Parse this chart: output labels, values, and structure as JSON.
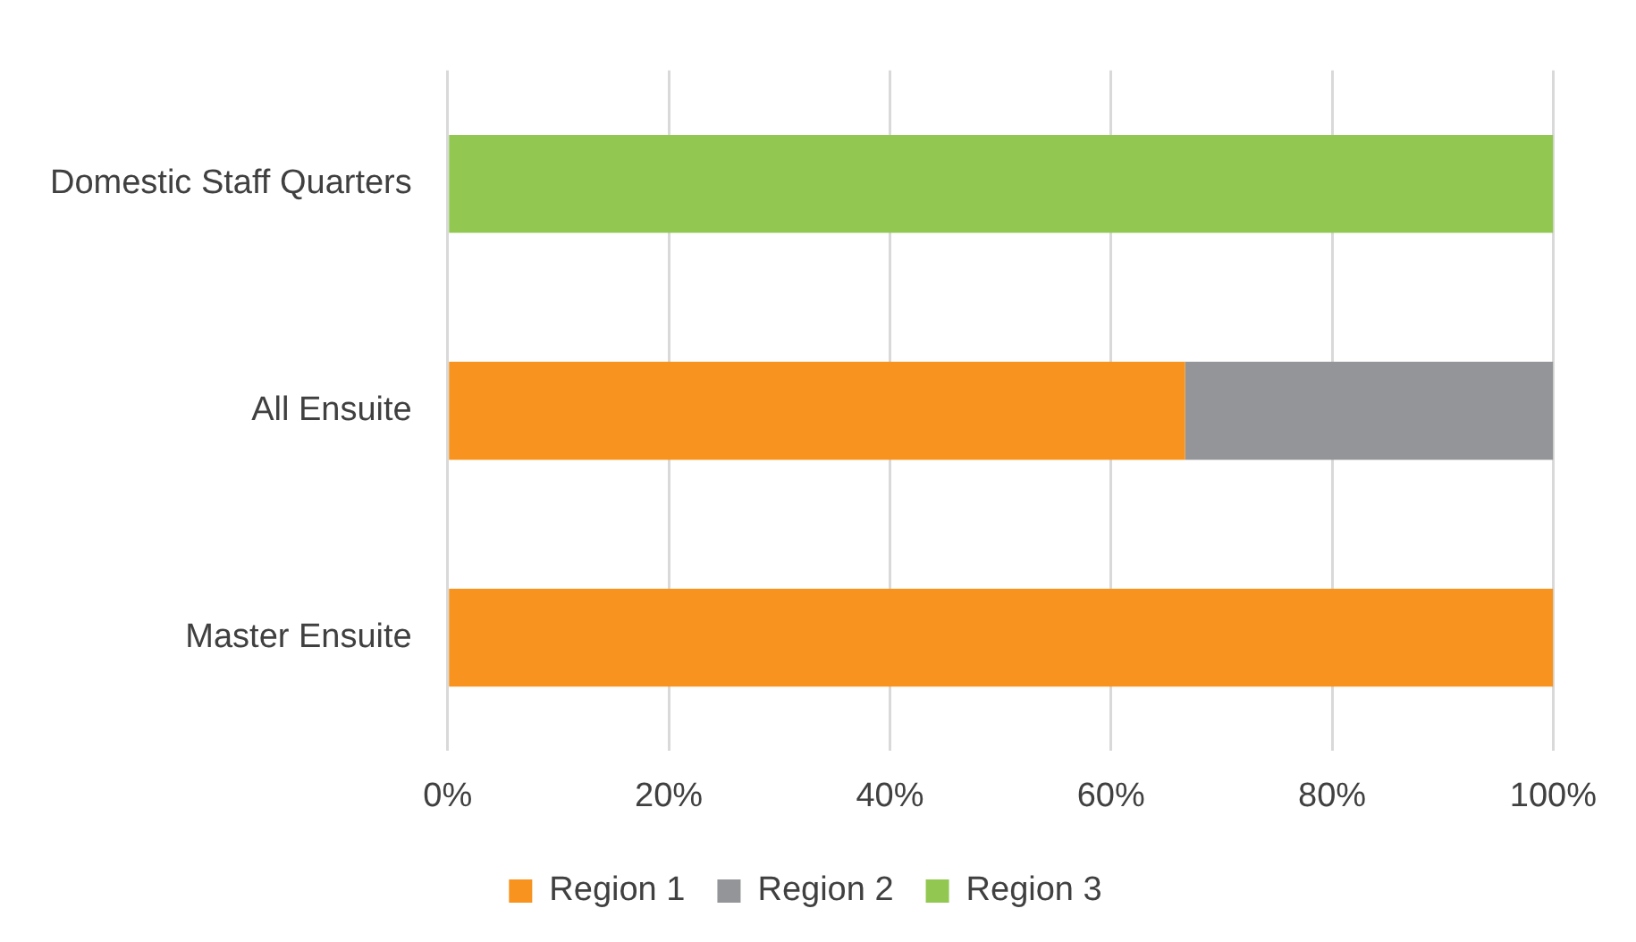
{
  "chart_data": {
    "type": "bar",
    "orientation": "horizontal",
    "stacked": true,
    "categories": [
      "Domestic Staff Quarters",
      "All Ensuite",
      "Master Ensuite"
    ],
    "series": [
      {
        "name": "Region 1",
        "color": "#f7931e",
        "values": [
          null,
          66.7,
          100
        ]
      },
      {
        "name": "Region 2",
        "color": "#939598",
        "values": [
          null,
          33.3,
          null
        ]
      },
      {
        "name": "Region 3",
        "color": "#92c851",
        "values": [
          100,
          null,
          null
        ]
      }
    ],
    "xlim": [
      0,
      100
    ],
    "xticks": [
      {
        "value": 0,
        "label": "0%"
      },
      {
        "value": 20,
        "label": "20%"
      },
      {
        "value": 40,
        "label": "40%"
      },
      {
        "value": 60,
        "label": "60%"
      },
      {
        "value": 80,
        "label": "80%"
      },
      {
        "value": 100,
        "label": "100%"
      }
    ],
    "grid": "x",
    "legend": "bottom"
  }
}
